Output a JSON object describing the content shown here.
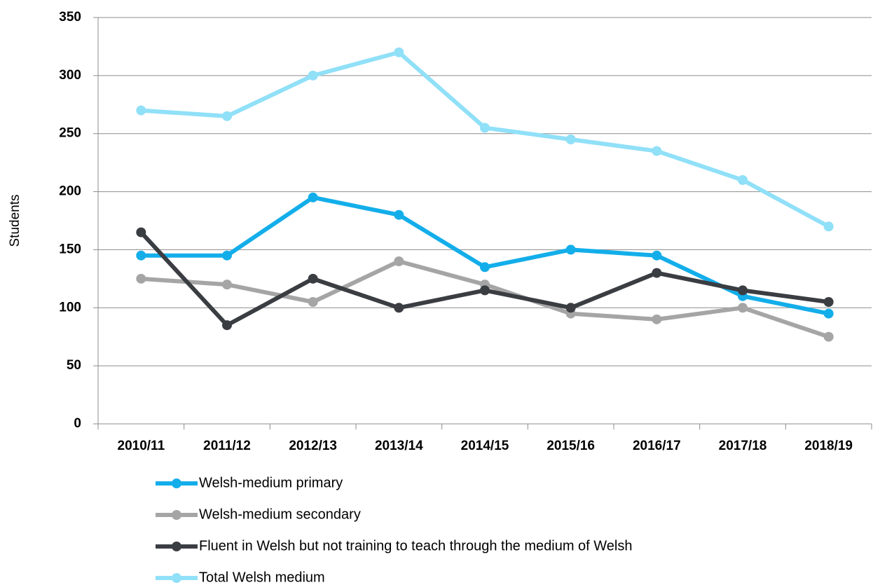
{
  "chart_data": {
    "type": "line",
    "y_label": "Students",
    "categories": [
      "2010/11",
      "2011/12",
      "2012/13",
      "2013/14",
      "2014/15",
      "2015/16",
      "2016/17",
      "2017/18",
      "2018/19"
    ],
    "series": [
      {
        "name": "Welsh-medium primary",
        "color": "#13aeea",
        "values": [
          145,
          145,
          195,
          180,
          135,
          150,
          145,
          110,
          95
        ]
      },
      {
        "name": "Welsh-medium secondary",
        "color": "#a5a5a5",
        "values": [
          125,
          120,
          105,
          140,
          120,
          95,
          90,
          100,
          75
        ]
      },
      {
        "name": "Fluent in Welsh but not training to teach through the medium of Welsh",
        "color": "#3a3d42",
        "values": [
          165,
          85,
          125,
          100,
          115,
          100,
          130,
          115,
          105
        ]
      },
      {
        "name": "Total Welsh medium",
        "color": "#90e0f8",
        "values": [
          270,
          265,
          300,
          320,
          255,
          245,
          235,
          210,
          170
        ]
      }
    ],
    "ylim": [
      0,
      350
    ],
    "yticks": [
      0,
      50,
      100,
      150,
      200,
      250,
      300,
      350
    ],
    "grid": true,
    "legend": "bottom"
  }
}
